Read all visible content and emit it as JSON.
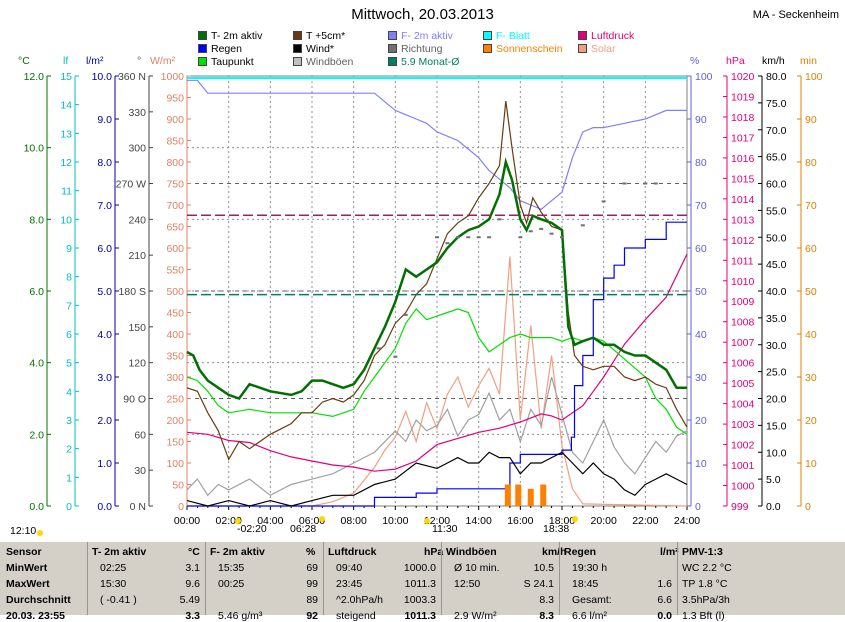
{
  "title": "Mittwoch, 20.03.2013",
  "station": "MA - Seckenheim",
  "colors": {
    "t2m": "#007000",
    "t5cm": "#6b3a10",
    "f2m": "#8080ff",
    "fblatt": "#00e0e0",
    "luftdruck": "#e0007a",
    "regen": "#0000ff",
    "wind": "#000000",
    "richtung": "#707070",
    "sonnenschein": "#ff8000",
    "taupunkt": "#00e000",
    "windboeen": "#a0a0a0",
    "solar": "#f0a080",
    "monat": "#008060"
  },
  "legend": [
    {
      "label": "T- 2m aktiv",
      "color": "#007000",
      "col": 0,
      "row": 0
    },
    {
      "label": "T +5cm*",
      "color": "#6b3a10",
      "col": 1,
      "row": 0
    },
    {
      "label": "F- 2m aktiv",
      "color": "#8080ff",
      "col": 2,
      "row": 0
    },
    {
      "label": "F- Blatt",
      "color": "#00ffff",
      "col": 3,
      "row": 0
    },
    {
      "label": "Luftdruck",
      "color": "#e0007a",
      "col": 4,
      "row": 0
    },
    {
      "label": "Regen",
      "color": "#0000ff",
      "col": 0,
      "row": 1
    },
    {
      "label": "Wind*",
      "color": "#000000",
      "col": 1,
      "row": 1
    },
    {
      "label": "Richtung",
      "color": "#707070",
      "col": 2,
      "row": 1
    },
    {
      "label": "Sonnenschein",
      "color": "#ff8000",
      "col": 3,
      "row": 1
    },
    {
      "label": "Solar",
      "color": "#f0a080",
      "col": 4,
      "row": 1
    },
    {
      "label": "Taupunkt",
      "color": "#00e000",
      "col": 0,
      "row": 2
    },
    {
      "label": "Windböen",
      "color": "#c0c0c0",
      "col": 1,
      "row": 2
    },
    {
      "label": "5.9 Monat-Ø",
      "color": "#008060",
      "col": 2,
      "row": 2
    }
  ],
  "axis_units": {
    "temp": "°C",
    "lf": "lf",
    "rain": "l/m²",
    "deg": "°",
    "solar": "W/m²",
    "pct": "%",
    "hpa": "hPa",
    "kmh": "km/h",
    "min": "min"
  },
  "axes": {
    "temp_ticks": [
      "12.0",
      "10.0",
      "8.0",
      "6.0",
      "4.0",
      "2.0",
      "0.0"
    ],
    "lf_ticks": [
      "15",
      "14",
      "13",
      "12",
      "11",
      "10",
      "9",
      "8",
      "7",
      "6",
      "5",
      "4",
      "3",
      "2",
      "1",
      "0"
    ],
    "rain_ticks": [
      "10.0",
      "9.0",
      "8.0",
      "7.0",
      "6.0",
      "5.0",
      "4.0",
      "3.0",
      "2.0",
      "1.0",
      "0.0"
    ],
    "deg_ticks": [
      "360 N",
      "330",
      "300",
      "270 W",
      "240",
      "210",
      "180 S",
      "150",
      "120",
      "90 O",
      "60",
      "30",
      "0 N"
    ],
    "solar_ticks": [
      "1000",
      "950",
      "900",
      "850",
      "800",
      "750",
      "700",
      "650",
      "600",
      "550",
      "500",
      "450",
      "400",
      "350",
      "300",
      "250",
      "200",
      "150",
      "100",
      "50",
      "0"
    ],
    "pct_ticks": [
      "100",
      "90",
      "80",
      "70",
      "60",
      "50",
      "40",
      "30",
      "20",
      "10",
      "0"
    ],
    "hpa_ticks": [
      "1020",
      "1019",
      "1018",
      "1017",
      "1016",
      "1015",
      "1014",
      "1013",
      "1012",
      "1011",
      "1010",
      "1009",
      "1008",
      "1007",
      "1006",
      "1005",
      "1004",
      "1003",
      "1002",
      "1001",
      "1000",
      "999"
    ],
    "kmh_ticks": [
      "80.0",
      "75.0",
      "70.0",
      "65.0",
      "60.0",
      "55.0",
      "50.0",
      "45.0",
      "40.0",
      "35.0",
      "30.0",
      "25.0",
      "20.0",
      "15.0",
      "10.0",
      "5.0",
      "0.0"
    ],
    "min_ticks": [
      "100",
      "90",
      "80",
      "70",
      "60",
      "50",
      "40",
      "30",
      "20",
      "10",
      "0"
    ],
    "time_ticks": [
      "00:00",
      "02:00",
      "04:00",
      "06:00",
      "08:00",
      "10:00",
      "12:00",
      "14:00",
      "16:00",
      "18:00",
      "20:00",
      "22:00",
      "24:00"
    ]
  },
  "time_markers": {
    "sunrise_left": "12:10",
    "moon": "-02:20",
    "sunrise": "06:28",
    "noon": "11:30",
    "sunset": "18:38"
  },
  "chart_data": {
    "type": "line",
    "x_unit": "hours",
    "xlim": [
      0,
      24
    ],
    "series": [
      {
        "name": "T- 2m aktiv",
        "axis": "°C",
        "ylim": [
          0,
          12
        ],
        "x": [
          0,
          0.3,
          0.6,
          1,
          1.5,
          2,
          2.5,
          3,
          4,
          5,
          5.5,
          6,
          6.5,
          7,
          7.5,
          8,
          8.5,
          9,
          9.5,
          10,
          10.5,
          11,
          11.5,
          12,
          12.5,
          13,
          13.5,
          14,
          14.5,
          15,
          15.3,
          15.6,
          16,
          16.3,
          16.6,
          17,
          17.5,
          18,
          18.3,
          18.6,
          19,
          19.5,
          20,
          20.5,
          21,
          21.5,
          22,
          22.5,
          23,
          23.5,
          24
        ],
        "y": [
          4.3,
          4.2,
          3.8,
          3.5,
          3.3,
          3.1,
          3.0,
          3.4,
          3.2,
          3.1,
          3.2,
          3.5,
          3.5,
          3.4,
          3.3,
          3.4,
          3.8,
          4.4,
          5.0,
          5.7,
          6.6,
          6.4,
          6.6,
          6.8,
          7.2,
          7.5,
          7.7,
          7.8,
          8.0,
          8.7,
          9.6,
          9.1,
          8.0,
          7.7,
          8.1,
          8.0,
          7.9,
          7.7,
          5.0,
          4.5,
          4.6,
          4.7,
          4.5,
          4.5,
          4.3,
          4.2,
          4.2,
          4.0,
          3.8,
          3.3,
          3.3
        ]
      },
      {
        "name": "T +5cm*",
        "axis": "°C",
        "ylim": [
          0,
          12
        ],
        "x": [
          0,
          0.5,
          1,
          1.5,
          2,
          2.5,
          3,
          4,
          5,
          5.5,
          6,
          6.5,
          7,
          7.5,
          8,
          8.5,
          9,
          9.5,
          10,
          10.5,
          11,
          11.5,
          12,
          12.5,
          13,
          13.5,
          14,
          14.5,
          15,
          15.3,
          15.6,
          16,
          16.3,
          16.6,
          17,
          17.5,
          18,
          18.3,
          18.6,
          19,
          19.5,
          20,
          20.5,
          21,
          21.5,
          22,
          22.5,
          23,
          23.5,
          24
        ],
        "y": [
          3.3,
          3.2,
          2.6,
          2.1,
          1.3,
          1.8,
          1.6,
          2.0,
          2.3,
          2.6,
          2.6,
          2.9,
          3.0,
          2.9,
          3.1,
          3.5,
          4.2,
          4.5,
          5.1,
          5.4,
          5.9,
          6.2,
          6.9,
          7.6,
          7.9,
          8.1,
          8.6,
          9.0,
          9.5,
          11.3,
          10.0,
          8.4,
          7.9,
          8.6,
          8.2,
          7.8,
          7.7,
          5.4,
          4.2,
          3.9,
          3.8,
          3.9,
          3.9,
          3.6,
          3.5,
          3.6,
          3.4,
          3.3,
          2.7,
          2.2
        ]
      },
      {
        "name": "Taupunkt",
        "axis": "°C",
        "ylim": [
          0,
          12
        ],
        "x": [
          0,
          0.5,
          1,
          1.5,
          2,
          3,
          4,
          5,
          6,
          7,
          8,
          8.5,
          9,
          9.5,
          10,
          10.5,
          11,
          11.5,
          12,
          12.5,
          13,
          13.5,
          14,
          14.5,
          15,
          15.5,
          16,
          16.5,
          17,
          17.5,
          18,
          18.5,
          19,
          19.5,
          20,
          21,
          22,
          22.5,
          23,
          23.5,
          24
        ],
        "y": [
          3.6,
          3.5,
          3.2,
          2.8,
          2.6,
          2.7,
          2.6,
          2.6,
          2.6,
          2.5,
          2.7,
          3.2,
          3.6,
          4.0,
          4.4,
          5.1,
          5.5,
          5.2,
          5.3,
          5.4,
          5.5,
          5.4,
          4.7,
          4.3,
          4.5,
          4.7,
          4.8,
          4.7,
          4.7,
          4.7,
          4.6,
          4.7,
          4.6,
          4.7,
          4.6,
          4.1,
          3.6,
          3.0,
          2.7,
          2.2,
          2.0
        ]
      },
      {
        "name": "F- 2m aktiv",
        "axis": "%",
        "ylim": [
          0,
          100
        ],
        "x": [
          0,
          0.5,
          1,
          2,
          3,
          4,
          5,
          6,
          7,
          8,
          9,
          9.5,
          10,
          10.5,
          11,
          11.5,
          12,
          12.5,
          13,
          13.5,
          14,
          14.5,
          15,
          15.5,
          16,
          16.5,
          17,
          17.5,
          18,
          18.5,
          19,
          19.5,
          20,
          21,
          22,
          23,
          24
        ],
        "y": [
          99,
          99,
          96,
          96,
          96,
          96,
          96,
          96,
          96,
          96,
          96,
          94,
          92,
          91,
          90,
          89,
          87,
          86,
          85,
          83,
          81,
          78,
          76,
          74,
          71,
          70,
          69,
          71,
          73,
          81,
          87,
          88,
          88,
          89,
          90,
          92,
          92
        ]
      },
      {
        "name": "Luftdruck",
        "axis": "hPa",
        "ylim": [
          999,
          1020
        ],
        "x": [
          0,
          1,
          2,
          3,
          4,
          5,
          6,
          7,
          8,
          9,
          10,
          11,
          12,
          13,
          14,
          15,
          16,
          17,
          17.5,
          18,
          19,
          19.5,
          20,
          20.5,
          21,
          22,
          23,
          24
        ],
        "y": [
          1002.6,
          1002.5,
          1002.2,
          1002.1,
          1001.7,
          1001.4,
          1001.2,
          1001.0,
          1000.9,
          1000.7,
          1000.8,
          1001.2,
          1002.0,
          1002.3,
          1002.6,
          1002.8,
          1003.1,
          1003.5,
          1003.4,
          1003.2,
          1003.9,
          1004.6,
          1005.3,
          1006.1,
          1006.9,
          1008.1,
          1009.2,
          1011.3
        ]
      },
      {
        "name": "Regen",
        "axis": "l/m²",
        "ylim": [
          0,
          10
        ],
        "step": true,
        "x": [
          0,
          8,
          9,
          11,
          12,
          13,
          14,
          15.5,
          16,
          17,
          18,
          18.45,
          18.6,
          19,
          19.5,
          20,
          20.5,
          21,
          21.5,
          22,
          22.5,
          23,
          24
        ],
        "y": [
          0,
          0,
          0.2,
          0.3,
          0.4,
          0.4,
          0.4,
          1.0,
          1.2,
          1.2,
          1.3,
          1.6,
          2.8,
          3.5,
          4.8,
          5.3,
          5.6,
          6.0,
          6.0,
          6.2,
          6.2,
          6.6,
          6.6
        ]
      },
      {
        "name": "Wind*",
        "axis": "km/h",
        "ylim": [
          0,
          80
        ],
        "x": [
          0,
          1,
          2,
          3,
          4,
          5,
          6,
          7,
          8,
          9,
          10,
          11,
          12,
          12.5,
          13,
          13.5,
          14,
          14.5,
          15,
          15.5,
          16,
          16.5,
          17,
          17.5,
          18,
          18.5,
          19,
          19.5,
          20,
          20.5,
          21,
          21.5,
          22,
          22.5,
          23,
          23.5,
          24
        ],
        "y": [
          1,
          0,
          1,
          0,
          1,
          0,
          1,
          2,
          2,
          4,
          5,
          8,
          7,
          8,
          9,
          8,
          8,
          10,
          9,
          9,
          6,
          8,
          8,
          9,
          10,
          8,
          6,
          8,
          6,
          5,
          3,
          2,
          4,
          5,
          6,
          5,
          4
        ]
      },
      {
        "name": "Windböen",
        "axis": "km/h",
        "ylim": [
          0,
          80
        ],
        "x": [
          0,
          0.5,
          1,
          1.5,
          2,
          3,
          4,
          5,
          6,
          7,
          8,
          9,
          10,
          10.5,
          11,
          11.5,
          12,
          12.5,
          13,
          13.5,
          14,
          14.5,
          15,
          15.5,
          16,
          16.5,
          17,
          17.5,
          18,
          18.5,
          19,
          19.5,
          20,
          20.5,
          21,
          21.5,
          22,
          22.5,
          23,
          23.5,
          24
        ],
        "y": [
          3,
          5,
          2,
          4,
          3,
          5,
          2,
          4,
          5,
          6,
          8,
          10,
          14,
          12,
          16,
          14,
          15,
          18,
          13,
          16,
          17,
          21,
          16,
          18,
          12,
          18,
          15,
          24,
          17,
          10,
          8,
          12,
          16,
          11,
          8,
          6,
          9,
          12,
          10,
          13,
          14
        ]
      },
      {
        "name": "Solar",
        "axis": "W/m²",
        "ylim": [
          0,
          1000
        ],
        "x": [
          0,
          6,
          7,
          8,
          8.5,
          9,
          9.5,
          10,
          10.5,
          11,
          11.5,
          12,
          12.5,
          13,
          13.5,
          14,
          14.5,
          15,
          15.5,
          16,
          16.5,
          17,
          17.5,
          18,
          18.5,
          19,
          24
        ],
        "y": [
          0,
          0,
          10,
          30,
          60,
          90,
          130,
          160,
          220,
          150,
          240,
          180,
          260,
          300,
          230,
          280,
          320,
          260,
          580,
          200,
          420,
          180,
          350,
          140,
          40,
          5,
          0
        ]
      },
      {
        "name": "Sonnenschein",
        "axis": "min",
        "ylim": [
          0,
          100
        ],
        "type": "bar",
        "x": [
          15.4,
          15.9,
          16.5,
          17.1
        ],
        "y": [
          5,
          5,
          4,
          5
        ]
      },
      {
        "name": "Richtung",
        "axis": "°",
        "ylim": [
          0,
          360
        ],
        "type": "scatter",
        "x": [
          9.2,
          10,
          10.5,
          12,
          12.5,
          13,
          13.5,
          14,
          14.5,
          15,
          16,
          16.5,
          17,
          17.5,
          18,
          19,
          20,
          21,
          22,
          22.5
        ],
        "y": [
          132,
          125,
          160,
          225,
          220,
          225,
          225,
          225,
          225,
          240,
          225,
          230,
          232,
          228,
          225,
          235,
          255,
          270,
          270,
          270
        ]
      }
    ],
    "reference_lines": [
      {
        "name": "5.9 Monat-Ø",
        "axis": "°C",
        "value": 5.9
      }
    ]
  },
  "stats": {
    "columns": [
      {
        "title": "Sensor",
        "unit": "",
        "rows": [
          "MinWert",
          "MaxWert",
          "Durchschnitt",
          "20.03. 23:55"
        ]
      },
      {
        "title": "T- 2m aktiv",
        "unit": "°C",
        "rows": [
          [
            "02:25",
            "3.1"
          ],
          [
            "15:30",
            "9.6"
          ],
          [
            "( -0.41 )",
            "5.49"
          ],
          [
            "",
            "3.3"
          ]
        ]
      },
      {
        "title": "F- 2m aktiv",
        "unit": "%",
        "rows": [
          [
            "15:35",
            "69"
          ],
          [
            "00:25",
            "99"
          ],
          [
            "",
            "89"
          ],
          [
            "5.46 g/m³",
            "92"
          ]
        ]
      },
      {
        "title": "Luftdruck",
        "unit": "hPa",
        "rows": [
          [
            "09:40",
            "1000.0"
          ],
          [
            "23:45",
            "1011.3"
          ],
          [
            "^2.0hPa/h",
            "1003.3"
          ],
          [
            "steigend",
            "1011.3"
          ]
        ]
      },
      {
        "title": "Windböen",
        "unit": "km/h",
        "rows": [
          [
            "Ø 10 min.",
            "10.5"
          ],
          [
            "12:50",
            "S 24.1"
          ],
          [
            "",
            "8.3"
          ],
          [
            "2.9 W/m²",
            "8.3"
          ]
        ]
      },
      {
        "title": "Regen",
        "unit": "l/m²",
        "rows": [
          [
            "19:30 h",
            ""
          ],
          [
            "18:45",
            "1.6"
          ],
          [
            "Gesamt:",
            "6.6"
          ],
          [
            "6.6 l/m²",
            "0.0"
          ]
        ]
      },
      {
        "title": "PMV-1:3",
        "unit": "",
        "rows": [
          "WC 2.2 °C",
          "TP 1.8 °C",
          "3.5hPa/3h",
          "1.3 Bft (l)"
        ]
      }
    ]
  }
}
